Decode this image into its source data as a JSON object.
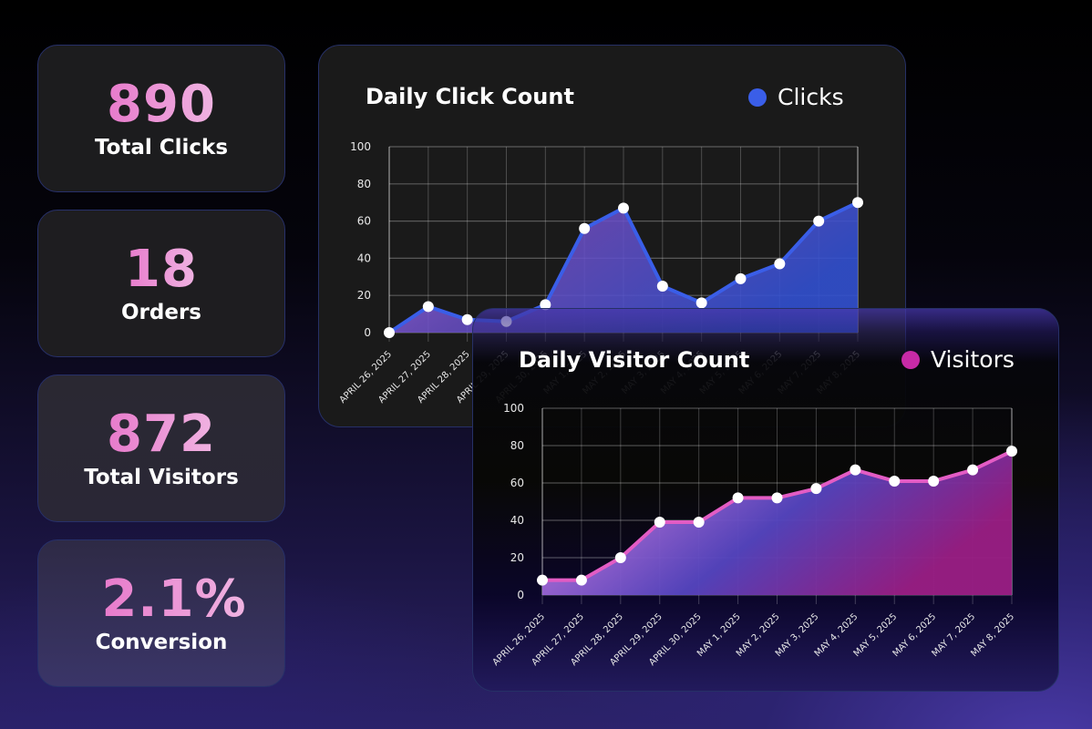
{
  "stats": [
    {
      "id": "clicks",
      "value": "890",
      "label": "Total Clicks"
    },
    {
      "id": "orders",
      "value": "18",
      "label": "Orders"
    },
    {
      "id": "visitors",
      "value": "872",
      "label": "Total Visitors"
    },
    {
      "id": "conversion",
      "value": "2.1%",
      "label": "Conversion"
    }
  ],
  "colors": {
    "clicks_line": "#3a5ee8",
    "visitors_line": "#e35cc4",
    "clicks_legend": "#3a5ee8",
    "visitors_legend": "#c72aa6",
    "stat_value_gradient": [
      "#e77acb",
      "#f0b4e2"
    ]
  },
  "chart_data": [
    {
      "type": "area",
      "title": "Daily Click Count",
      "legend": [
        "Clicks"
      ],
      "xlabel": "",
      "ylabel": "",
      "ylim": [
        0,
        100
      ],
      "yticks": [
        0,
        20,
        40,
        60,
        80,
        100
      ],
      "grid": true,
      "legend_position": "top-right",
      "categories": [
        "APRIL 26, 2025",
        "APRIL 27, 2025",
        "APRIL 28, 2025",
        "APRIL 29, 2025",
        "APRIL 30, 2025",
        "MAY 1, 2025",
        "MAY 2, 2025",
        "MAY 3, 2025",
        "MAY 4, 2025",
        "MAY 5, 2025",
        "MAY 6, 2025",
        "MAY 7, 2025",
        "MAY 8, 2025"
      ],
      "series": [
        {
          "name": "Clicks",
          "values": [
            0,
            14,
            7,
            6,
            15,
            56,
            67,
            25,
            16,
            29,
            37,
            60,
            70
          ]
        }
      ]
    },
    {
      "type": "area",
      "title": "Daily Visitor Count",
      "legend": [
        "Visitors"
      ],
      "xlabel": "",
      "ylabel": "",
      "ylim": [
        0,
        100
      ],
      "yticks": [
        0,
        20,
        40,
        60,
        80,
        100
      ],
      "grid": true,
      "legend_position": "top-right",
      "categories": [
        "APRIL 26, 2025",
        "APRIL 27, 2025",
        "APRIL 28, 2025",
        "APRIL 29, 2025",
        "APRIL 30, 2025",
        "MAY 1, 2025",
        "MAY 2, 2025",
        "MAY 3, 2025",
        "MAY 4, 2025",
        "MAY 5, 2025",
        "MAY 6, 2025",
        "MAY 7, 2025",
        "MAY 8, 2025"
      ],
      "series": [
        {
          "name": "Visitors",
          "values": [
            8,
            8,
            20,
            39,
            39,
            52,
            52,
            57,
            67,
            61,
            61,
            67,
            77
          ]
        }
      ]
    }
  ]
}
